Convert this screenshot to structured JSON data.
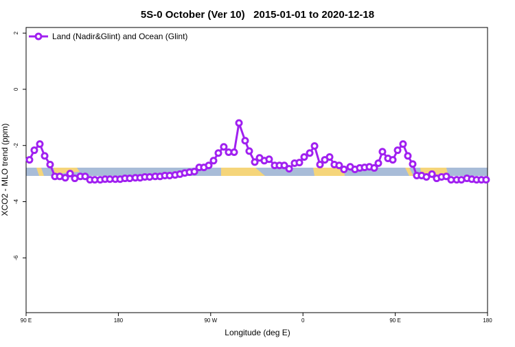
{
  "chart_data": {
    "type": "line",
    "title": "5S-0 October (Ver 10)   2015-01-01 to 2020-12-18",
    "xlabel": "Longitude (deg E)",
    "ylabel": "XCO2 - MLO trend (ppm)",
    "xlim": [
      90,
      540
    ],
    "xticks": [
      {
        "value": 90,
        "label": "90 E"
      },
      {
        "value": 180,
        "label": "180"
      },
      {
        "value": 270,
        "label": "90 W"
      },
      {
        "value": 360,
        "label": "0"
      },
      {
        "value": 450,
        "label": "90 E"
      },
      {
        "value": 540,
        "label": "180"
      }
    ],
    "ylim": [
      -7.95,
      2.2
    ],
    "yticks": [
      2,
      0,
      -2,
      -4,
      -6
    ],
    "legend": "top-left",
    "x": [
      93.3,
      98.0,
      103.4,
      108.1,
      113.4,
      118.1,
      122.8,
      128.2,
      132.9,
      137.5,
      142.9,
      147.6,
      152.3,
      157.0,
      162.3,
      167.0,
      171.7,
      177.0,
      181.7,
      186.4,
      191.1,
      196.5,
      201.2,
      205.8,
      210.5,
      215.9,
      220.6,
      225.3,
      230.0,
      235.3,
      240.0,
      244.7,
      249.4,
      254.1,
      258.8,
      263.4,
      268.1,
      272.8,
      277.5,
      282.8,
      287.5,
      292.9,
      297.6,
      303.6,
      307.6,
      313.0,
      317.7,
      322.3,
      327.0,
      332.4,
      337.1,
      341.8,
      346.5,
      351.8,
      356.5,
      361.2,
      366.6,
      371.3,
      376.6,
      381.3,
      386.0,
      390.6,
      395.3,
      400.0,
      406.1,
      410.7,
      415.4,
      420.1,
      424.8,
      429.5,
      433.5,
      437.5,
      442.9,
      447.6,
      452.3,
      457.6,
      462.3,
      467.0,
      471.0,
      475.7,
      480.4,
      485.8,
      490.4,
      495.1,
      499.8,
      504.5,
      509.9,
      514.5,
      519.9,
      524.6,
      529.3,
      534.0,
      538.6
    ],
    "series": [
      {
        "name": "Land (Nadir&Glint) and Ocean (Glint)",
        "color": "#a020f0",
        "values": [
          -2.51,
          -2.17,
          -1.95,
          -2.37,
          -2.68,
          -3.1,
          -3.1,
          -3.15,
          -3.0,
          -3.17,
          -3.1,
          -3.1,
          -3.22,
          -3.22,
          -3.22,
          -3.2,
          -3.2,
          -3.2,
          -3.2,
          -3.17,
          -3.17,
          -3.15,
          -3.15,
          -3.12,
          -3.12,
          -3.1,
          -3.1,
          -3.07,
          -3.07,
          -3.05,
          -3.02,
          -2.98,
          -2.95,
          -2.93,
          -2.78,
          -2.78,
          -2.71,
          -2.54,
          -2.27,
          -2.05,
          -2.24,
          -2.24,
          -1.2,
          -1.83,
          -2.2,
          -2.59,
          -2.44,
          -2.54,
          -2.49,
          -2.71,
          -2.71,
          -2.71,
          -2.83,
          -2.63,
          -2.61,
          -2.41,
          -2.27,
          -2.02,
          -2.68,
          -2.51,
          -2.41,
          -2.68,
          -2.71,
          -2.85,
          -2.76,
          -2.85,
          -2.8,
          -2.78,
          -2.76,
          -2.8,
          -2.63,
          -2.22,
          -2.46,
          -2.51,
          -2.17,
          -1.95,
          -2.37,
          -2.66,
          -3.07,
          -3.07,
          -3.12,
          -3.02,
          -3.17,
          -3.12,
          -3.1,
          -3.22,
          -3.22,
          -3.22,
          -3.17,
          -3.2,
          -3.22,
          -3.22,
          -3.22
        ]
      }
    ]
  }
}
